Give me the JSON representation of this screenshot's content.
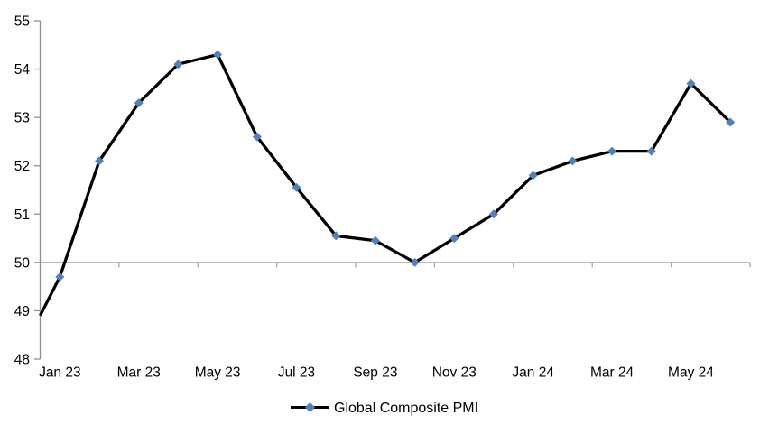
{
  "chart_data": {
    "type": "line",
    "title": "",
    "legend_position": "bottom",
    "grid": false,
    "categories": [
      "Jan 23",
      "Feb 23",
      "Mar 23",
      "Apr 23",
      "May 23",
      "Jun 23",
      "Jul 23",
      "Aug 23",
      "Sep 23",
      "Oct 23",
      "Nov 23",
      "Dec 23",
      "Jan 24",
      "Feb 24",
      "Mar 24",
      "Apr 24",
      "May 24",
      "Jun 24"
    ],
    "series": [
      {
        "name": "Global Composite PMI",
        "values": [
          49.7,
          52.1,
          53.3,
          54.1,
          54.3,
          52.6,
          51.55,
          50.55,
          50.45,
          50.0,
          50.5,
          51.0,
          51.8,
          52.1,
          52.3,
          52.3,
          53.7,
          52.9
        ]
      }
    ],
    "x_tick_labels": [
      "Jan 23",
      "Mar 23",
      "May 23",
      "Jul 23",
      "Sep 23",
      "Nov 23",
      "Jan 24",
      "Mar 24",
      "May 24"
    ],
    "y_tick_labels": [
      "48",
      "49",
      "50",
      "51",
      "52",
      "53",
      "54",
      "55"
    ],
    "ylim": [
      48,
      55
    ],
    "x_axis_cross_value": 50,
    "line_enters_left_edge_at": 48.9,
    "colors": {
      "line": "#000000",
      "marker": "#4F81BD",
      "axis": "#A6A6A6",
      "text": "#000000",
      "background": "#FFFFFF"
    }
  }
}
